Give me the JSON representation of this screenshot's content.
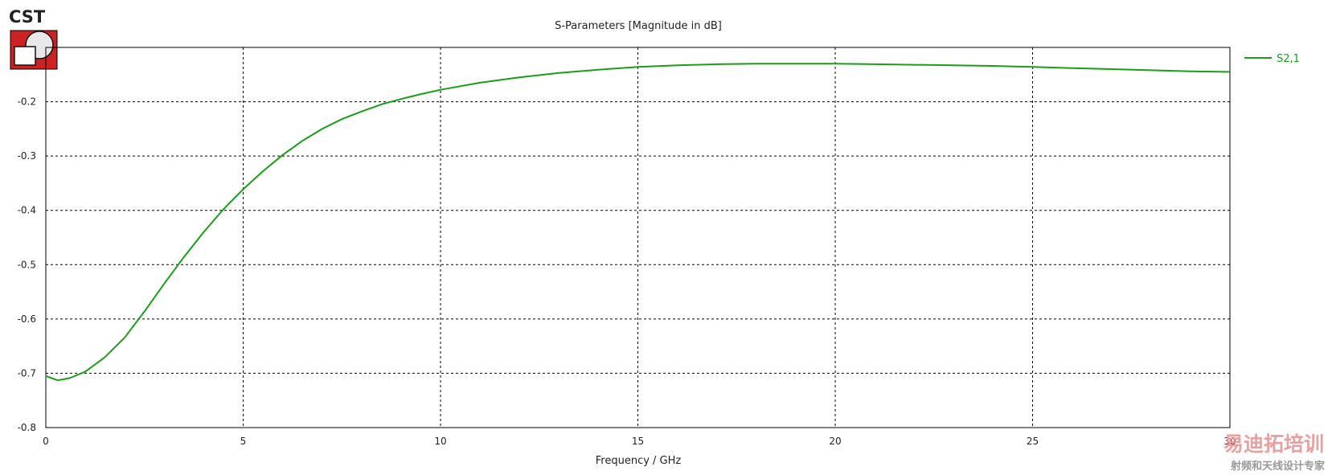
{
  "logo": {
    "text": "CST"
  },
  "chart_data": {
    "type": "line",
    "title": "S-Parameters [Magnitude in dB]",
    "xlabel": "Frequency / GHz",
    "ylabel": "",
    "xlim": [
      0,
      30
    ],
    "ylim": [
      -0.8,
      -0.1
    ],
    "xticks": [
      0,
      5,
      10,
      15,
      20,
      25,
      30
    ],
    "yticks": [
      -0.8,
      -0.7,
      -0.6,
      -0.5,
      -0.4,
      -0.3,
      -0.2
    ],
    "grid": true,
    "legend_position": "top-right",
    "series": [
      {
        "name": "S2,1",
        "color": "#1a9e1a",
        "x": [
          0,
          0.3,
          0.6,
          1,
          1.5,
          2,
          2.5,
          3,
          3.5,
          4,
          4.5,
          5,
          5.5,
          6,
          6.5,
          7,
          7.5,
          8,
          8.5,
          9,
          9.5,
          10,
          11,
          12,
          13,
          14,
          15,
          16,
          17,
          18,
          19,
          20,
          21,
          22,
          23,
          24,
          25,
          26,
          27,
          28,
          29,
          30
        ],
        "y": [
          -0.705,
          -0.713,
          -0.709,
          -0.697,
          -0.67,
          -0.634,
          -0.586,
          -0.535,
          -0.486,
          -0.44,
          -0.398,
          -0.361,
          -0.328,
          -0.298,
          -0.272,
          -0.25,
          -0.232,
          -0.218,
          -0.205,
          -0.195,
          -0.186,
          -0.178,
          -0.165,
          -0.155,
          -0.147,
          -0.141,
          -0.136,
          -0.133,
          -0.131,
          -0.13,
          -0.13,
          -0.13,
          -0.131,
          -0.132,
          -0.133,
          -0.134,
          -0.136,
          -0.138,
          -0.14,
          -0.142,
          -0.144,
          -0.145
        ]
      }
    ]
  },
  "watermark": {
    "main": "易迪拓培训",
    "sub": "射频和天线设计专家",
    "color_main": "#e8a0a0",
    "color_sub": "#999999"
  }
}
